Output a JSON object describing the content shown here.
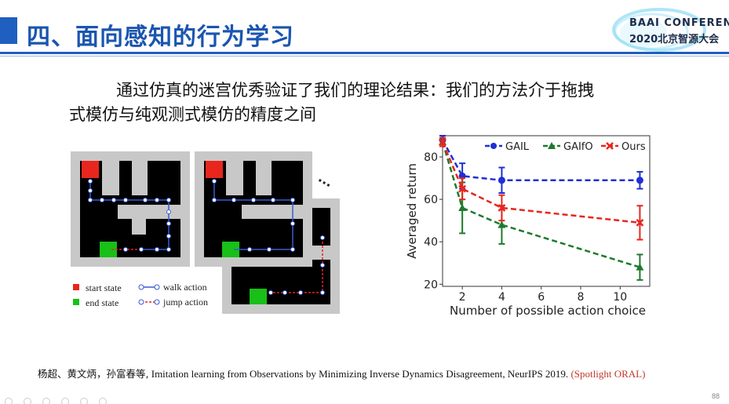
{
  "header": {
    "title": "四、面向感知的行为学习",
    "logo_line1": "BAAI CONFERENCE",
    "logo_line2": "2020北京智源大会"
  },
  "body": {
    "line1": "通过仿真的迷宫优秀验证了我们的理论结果：我们的方法介于拖拽",
    "line2": "式模仿与纯观测式模仿的精度之间"
  },
  "maze_figure": {
    "legend": {
      "start": "start state",
      "end": "end state",
      "walk": "walk action",
      "jump": "jump action"
    },
    "ellipsis": "..."
  },
  "chart_data": {
    "type": "line",
    "xlabel": "Number of possible action choice",
    "ylabel": "Averaged return",
    "xlim": [
      1,
      11.5
    ],
    "ylim": [
      19,
      90
    ],
    "xticks": [
      2,
      4,
      6,
      8,
      10
    ],
    "yticks": [
      20,
      40,
      60,
      80
    ],
    "legend_position": "top",
    "series": [
      {
        "name": "GAIL",
        "color": "#1f2fd6",
        "marker": "circle",
        "x": [
          1,
          2,
          4,
          11
        ],
        "y": [
          88,
          71,
          69,
          69
        ],
        "err": [
          2,
          6,
          6,
          4
        ]
      },
      {
        "name": "GAIfO",
        "color": "#1f7a2e",
        "marker": "triangle",
        "x": [
          1,
          2,
          4,
          11
        ],
        "y": [
          87,
          56,
          48,
          28
        ],
        "err": [
          2,
          12,
          9,
          6
        ]
      },
      {
        "name": "Ours",
        "color": "#e8261e",
        "marker": "x",
        "x": [
          1,
          2,
          4,
          11
        ],
        "y": [
          87,
          65,
          56,
          49
        ],
        "err": [
          2,
          5,
          6,
          8
        ]
      }
    ]
  },
  "citation": {
    "authors": "杨超、黄文炳，孙富春等,",
    "text": " Imitation learning from Observations by Minimizing Inverse Dynamics Disagreement, NeurIPS  2019. ",
    "highlight": "(Spotlight ORAL)"
  },
  "footer": {
    "page": "88"
  }
}
